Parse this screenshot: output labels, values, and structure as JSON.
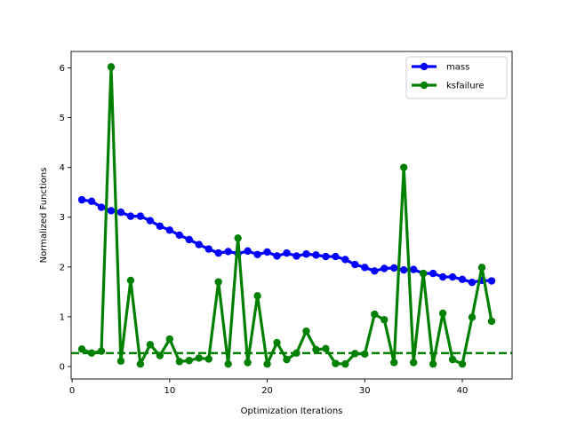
{
  "chart_data": {
    "type": "line",
    "xlabel": "Optimization Iterations",
    "ylabel": "Normalized Functions",
    "xlim": [
      -0.1,
      45.1
    ],
    "ylim": [
      -0.25,
      6.33
    ],
    "xticks": [
      0,
      10,
      20,
      30,
      40
    ],
    "yticks": [
      0,
      1,
      2,
      3,
      4,
      5,
      6
    ],
    "grid": false,
    "legend_position": "top-right",
    "x": [
      1,
      2,
      3,
      4,
      5,
      6,
      7,
      8,
      9,
      10,
      11,
      12,
      13,
      14,
      15,
      16,
      17,
      18,
      19,
      20,
      21,
      22,
      23,
      24,
      25,
      26,
      27,
      28,
      29,
      30,
      31,
      32,
      33,
      34,
      35,
      36,
      37,
      38,
      39,
      40,
      41,
      42,
      43
    ],
    "series": [
      {
        "name": "mass",
        "color": "#0000ff",
        "values": [
          3.35,
          3.32,
          3.2,
          3.13,
          3.1,
          3.02,
          3.02,
          2.93,
          2.82,
          2.74,
          2.64,
          2.55,
          2.45,
          2.36,
          2.28,
          2.31,
          2.27,
          2.32,
          2.25,
          2.3,
          2.22,
          2.28,
          2.22,
          2.26,
          2.24,
          2.21,
          2.21,
          2.15,
          2.05,
          1.99,
          1.92,
          1.97,
          1.98,
          1.94,
          1.95,
          1.87,
          1.87,
          1.8,
          1.8,
          1.75,
          1.69,
          1.73,
          1.72
        ]
      },
      {
        "name": "ksfailure",
        "color": "#008000",
        "values": [
          0.35,
          0.27,
          0.31,
          6.02,
          0.11,
          1.73,
          0.05,
          0.44,
          0.22,
          0.55,
          0.1,
          0.12,
          0.17,
          0.15,
          1.7,
          0.05,
          2.58,
          0.08,
          1.42,
          0.05,
          0.48,
          0.14,
          0.27,
          0.71,
          0.34,
          0.36,
          0.06,
          0.05,
          0.26,
          0.25,
          1.05,
          0.94,
          0.08,
          4.0,
          0.08,
          1.87,
          0.05,
          1.07,
          0.14,
          0.05,
          0.99,
          1.99,
          0.91
        ]
      }
    ],
    "reference_line": {
      "y": 0.27,
      "color": "#008000",
      "style": "dashed"
    }
  }
}
